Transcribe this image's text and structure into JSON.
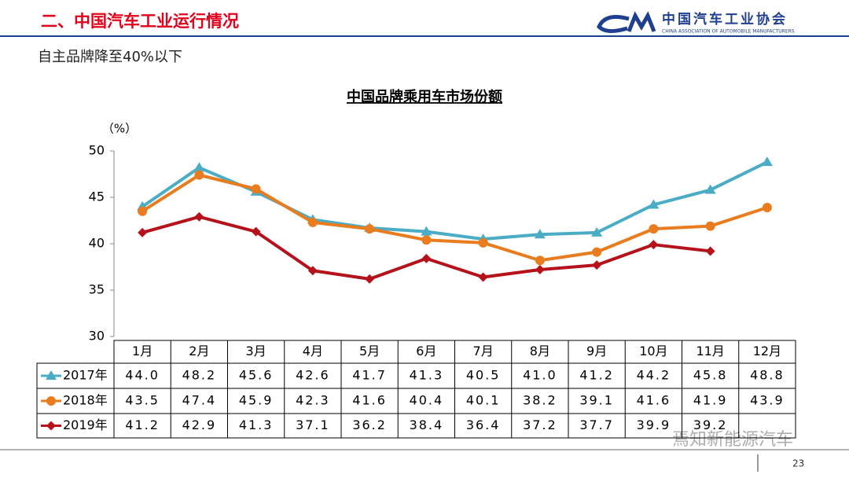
{
  "slide": {
    "header": "二、中国汽车工业运行情况",
    "logo_name": "中国汽车工业协会",
    "logo_subtitle": "CHINA ASSOCIATION OF AUTOMOBILE MANUFACTURERS",
    "headline": "自主品牌降至40%以下",
    "page_number": "23",
    "watermark": "焉知新能源汽车"
  },
  "chart_data": {
    "type": "line",
    "title": "中国品牌乘用车市场份额",
    "y_label": "（%）",
    "categories": [
      "1月",
      "2月",
      "3月",
      "4月",
      "5月",
      "6月",
      "7月",
      "8月",
      "9月",
      "10月",
      "11月",
      "12月"
    ],
    "series": [
      {
        "name": "2017年",
        "color": "#4bacc6",
        "marker": "triangle",
        "values": [
          44.0,
          48.2,
          45.6,
          42.6,
          41.7,
          41.3,
          40.5,
          41.0,
          41.2,
          44.2,
          45.8,
          48.8
        ],
        "value_labels": [
          "44.0",
          "48.2",
          "45.6",
          "42.6",
          "41.7",
          "41.3",
          "40.5",
          "41.0",
          "41.2",
          "44.2",
          "45.8",
          "48.8"
        ]
      },
      {
        "name": "2018年",
        "color": "#e97c1f",
        "marker": "circle",
        "values": [
          43.5,
          47.4,
          45.9,
          42.3,
          41.6,
          40.4,
          40.1,
          38.2,
          39.1,
          41.6,
          41.9,
          43.9
        ],
        "value_labels": [
          "43.5",
          "47.4",
          "45.9",
          "42.3",
          "41.6",
          "40.4",
          "40.1",
          "38.2",
          "39.1",
          "41.6",
          "41.9",
          "43.9"
        ]
      },
      {
        "name": "2019年",
        "color": "#b5121b",
        "marker": "diamond",
        "values": [
          41.2,
          42.9,
          41.3,
          37.1,
          36.2,
          38.4,
          36.4,
          37.2,
          37.7,
          39.9,
          39.2,
          null
        ],
        "value_labels": [
          "41.2",
          "42.9",
          "41.3",
          "37.1",
          "36.2",
          "38.4",
          "36.4",
          "37.2",
          "37.7",
          "39.9",
          "39.2",
          null
        ]
      }
    ],
    "ylim": [
      30,
      50
    ],
    "yticks": [
      30,
      35,
      40,
      45,
      50
    ],
    "grid": false
  }
}
